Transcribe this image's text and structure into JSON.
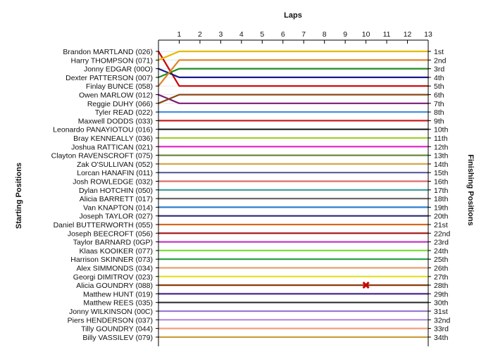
{
  "chart_data": {
    "type": "line",
    "xlabel": "Laps",
    "ylabel_left": "Starting Positions",
    "ylabel_right": "Finishing Positions",
    "laps": [
      1,
      2,
      3,
      4,
      5,
      6,
      7,
      8,
      9,
      10,
      11,
      12,
      13
    ],
    "drivers": [
      "Brandon MARTLAND (026)",
      "Harry THOMPSON (071)",
      "Jonny EDGAR (00O)",
      "Dexter PATTERSON (007)",
      "Finlay BUNCE (058)",
      "Owen MARLOW (012)",
      "Reggie DUHY (066)",
      "Tyler READ (022)",
      "Maxwell DODDS (033)",
      "Leonardo PANAYIOTOU (016)",
      "Bray KENNEALLY (036)",
      "Joshua RATTICAN (021)",
      "Clayton RAVENSCROFT (075)",
      "Zak O'SULLIVAN (052)",
      "Lorcan HANAFIN (011)",
      "Josh ROWLEDGE (032)",
      "Dylan HOTCHIN (050)",
      "Alicia BARRETT (017)",
      "Van KNAPTON (014)",
      "Joseph TAYLOR (027)",
      "Daniel BUTTERWORTH (055)",
      "Joseph BEECROFT (056)",
      "Taylor BARNARD (0GP)",
      "Klaas KOOIKER (077)",
      "Harrison SKINNER (073)",
      "Alex SIMMONDS (034)",
      "Georgi DIMITROV (023)",
      "Alicia GOUNDRY (088)",
      "Matthew HUNT (019)",
      "Matthew REES (035)",
      "Jonny WILKINSON (00C)",
      "Piers HENDERSON (037)",
      "Tilly GOUNDRY (044)",
      "Billy VASSILEV (079)"
    ],
    "finishing_labels": [
      "1st",
      "2nd",
      "3rd",
      "4th",
      "5th",
      "6th",
      "7th",
      "8th",
      "9th",
      "10th",
      "11th",
      "12th",
      "13th",
      "14th",
      "15th",
      "16th",
      "17th",
      "18th",
      "19th",
      "20th",
      "21st",
      "22nd",
      "23rd",
      "24th",
      "25th",
      "26th",
      "27th",
      "28th",
      "29th",
      "30th",
      "31st",
      "32nd",
      "33rd",
      "34th"
    ],
    "series": [
      {
        "start": 1,
        "positions": [
          5,
          5,
          5,
          5,
          5,
          5,
          5,
          5,
          5,
          5,
          5,
          5,
          5
        ],
        "color": "#cc0000"
      },
      {
        "start": 2,
        "positions": [
          1,
          1,
          1,
          1,
          1,
          1,
          1,
          1,
          1,
          1,
          1,
          1,
          1
        ],
        "color": "#e6b800"
      },
      {
        "start": 3,
        "positions": [
          4,
          4,
          4,
          4,
          4,
          4,
          4,
          4,
          4,
          4,
          4,
          4,
          4
        ],
        "color": "#1a1a8c"
      },
      {
        "start": 4,
        "positions": [
          3,
          3,
          3,
          3,
          3,
          3,
          3,
          3,
          3,
          3,
          3,
          3,
          3
        ],
        "color": "#228b22"
      },
      {
        "start": 5,
        "positions": [
          2,
          2,
          2,
          2,
          2,
          2,
          2,
          2,
          2,
          2,
          2,
          2,
          2
        ],
        "color": "#e08020"
      },
      {
        "start": 6,
        "positions": [
          7,
          7,
          7,
          7,
          7,
          7,
          7,
          7,
          7,
          7,
          7,
          7,
          7
        ],
        "color": "#7a1f7a"
      },
      {
        "start": 7,
        "positions": [
          6,
          6,
          6,
          6,
          6,
          6,
          6,
          6,
          6,
          6,
          6,
          6,
          6
        ],
        "color": "#8b4513"
      },
      {
        "start": 8,
        "positions": [
          8,
          8,
          8,
          8,
          8,
          8,
          8,
          8,
          8,
          8,
          8,
          8,
          8
        ],
        "color": "#4a90d9"
      },
      {
        "start": 9,
        "positions": [
          9,
          9,
          9,
          9,
          9,
          9,
          9,
          9,
          9,
          9,
          9,
          9,
          9
        ],
        "color": "#c81e1e"
      },
      {
        "start": 10,
        "positions": [
          10,
          10,
          10,
          10,
          10,
          10,
          10,
          10,
          10,
          10,
          10,
          10,
          10
        ],
        "color": "#222222"
      },
      {
        "start": 11,
        "positions": [
          11,
          11,
          11,
          11,
          11,
          11,
          11,
          11,
          11,
          11,
          11,
          11,
          11
        ],
        "color": "#9fd22a"
      },
      {
        "start": 12,
        "positions": [
          12,
          12,
          12,
          12,
          12,
          12,
          12,
          12,
          12,
          12,
          12,
          12,
          12
        ],
        "color": "#e020c0"
      },
      {
        "start": 13,
        "positions": [
          13,
          13,
          13,
          13,
          13,
          13,
          13,
          13,
          13,
          13,
          13,
          13,
          13
        ],
        "color": "#6a8a3a"
      },
      {
        "start": 14,
        "positions": [
          14,
          14,
          14,
          14,
          14,
          14,
          14,
          14,
          14,
          14,
          14,
          14,
          14
        ],
        "color": "#d4a84a"
      },
      {
        "start": 15,
        "positions": [
          15,
          15,
          15,
          15,
          15,
          15,
          15,
          15,
          15,
          15,
          15,
          15,
          15
        ],
        "color": "#5a5aa0"
      },
      {
        "start": 16,
        "positions": [
          16,
          16,
          16,
          16,
          16,
          16,
          16,
          16,
          16,
          16,
          16,
          16,
          16
        ],
        "color": "#e06a6a"
      },
      {
        "start": 17,
        "positions": [
          17,
          17,
          17,
          17,
          17,
          17,
          17,
          17,
          17,
          17,
          17,
          17,
          17
        ],
        "color": "#3a9a9a"
      },
      {
        "start": 18,
        "positions": [
          18,
          18,
          18,
          18,
          18,
          18,
          18,
          18,
          18,
          18,
          18,
          18,
          18
        ],
        "color": "#6b6b6b"
      },
      {
        "start": 19,
        "positions": [
          19,
          19,
          19,
          19,
          19,
          19,
          19,
          19,
          19,
          19,
          19,
          19,
          19
        ],
        "color": "#2d7dd2"
      },
      {
        "start": 20,
        "positions": [
          20,
          20,
          20,
          20,
          20,
          20,
          20,
          20,
          20,
          20,
          20,
          20,
          20
        ],
        "color": "#2b2b6e"
      },
      {
        "start": 21,
        "positions": [
          21,
          21,
          21,
          21,
          21,
          21,
          21,
          21,
          21,
          21,
          21,
          21,
          21
        ],
        "color": "#d2691e"
      },
      {
        "start": 22,
        "positions": [
          22,
          22,
          22,
          22,
          22,
          22,
          22,
          22,
          22,
          22,
          22,
          22,
          22
        ],
        "color": "#a01010"
      },
      {
        "start": 23,
        "positions": [
          23,
          23,
          23,
          23,
          23,
          23,
          23,
          23,
          23,
          23,
          23,
          23,
          23
        ],
        "color": "#c03ac0"
      },
      {
        "start": 24,
        "positions": [
          24,
          24,
          24,
          24,
          24,
          24,
          24,
          24,
          24,
          24,
          24,
          24,
          24
        ],
        "color": "#80e040"
      },
      {
        "start": 25,
        "positions": [
          25,
          25,
          25,
          25,
          25,
          25,
          25,
          25,
          25,
          25,
          25,
          25,
          25
        ],
        "color": "#1e9e3e"
      },
      {
        "start": 26,
        "positions": [
          26,
          26,
          26,
          26,
          26,
          26,
          26,
          26,
          26,
          26,
          26,
          26,
          26
        ],
        "color": "#e8a070"
      },
      {
        "start": 27,
        "positions": [
          27,
          27,
          27,
          27,
          27,
          27,
          27,
          27,
          27,
          27,
          27,
          27,
          27
        ],
        "color": "#e0e020"
      },
      {
        "start": 28,
        "positions": [
          28,
          28,
          28,
          28,
          28,
          28,
          28,
          28,
          28,
          28,
          28,
          28,
          28
        ],
        "color": "#8b3a0a"
      },
      {
        "start": 29,
        "positions": [
          29,
          29,
          29,
          29,
          29,
          29,
          29,
          29,
          29,
          29,
          29,
          29,
          29
        ],
        "color": "#4a2a8a"
      },
      {
        "start": 30,
        "positions": [
          30,
          30,
          30,
          30,
          30,
          30,
          30,
          30,
          30,
          30,
          30,
          30,
          30
        ],
        "color": "#333333"
      },
      {
        "start": 31,
        "positions": [
          31,
          31,
          31,
          31,
          31,
          31,
          31,
          31,
          31,
          31,
          31,
          31,
          31
        ],
        "color": "#9a7ad0"
      },
      {
        "start": 32,
        "positions": [
          32,
          32,
          32,
          32,
          32,
          32,
          32,
          32,
          32,
          32,
          32,
          32,
          32
        ],
        "color": "#b48ad8"
      },
      {
        "start": 33,
        "positions": [
          33,
          33,
          33,
          33,
          33,
          33,
          33,
          33,
          33,
          33,
          33,
          33,
          33
        ],
        "color": "#f0a080"
      },
      {
        "start": 34,
        "positions": [
          34,
          34,
          34,
          34,
          34,
          34,
          34,
          34,
          34,
          34,
          34,
          34,
          34
        ],
        "color": "#c8a040"
      }
    ],
    "retired_marker": {
      "lap": 10,
      "position": 28,
      "color": "#cc0000"
    },
    "grid": "horizontal"
  }
}
